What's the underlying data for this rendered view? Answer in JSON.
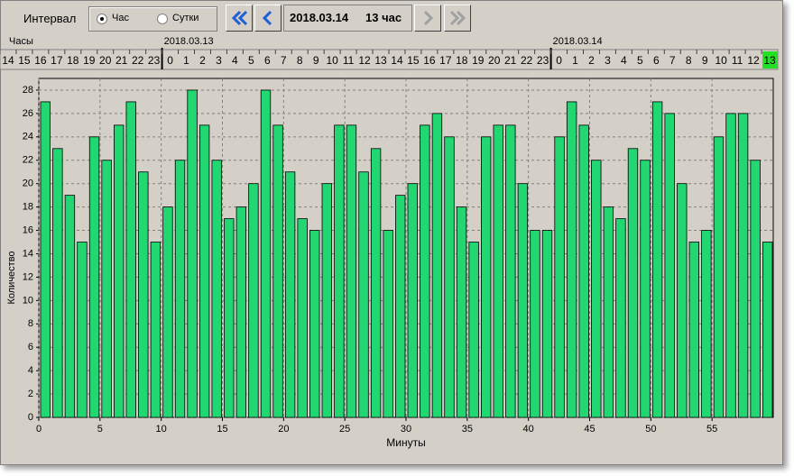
{
  "toolbar": {
    "interval_label": "Интервал",
    "options": [
      "Час",
      "Сутки"
    ],
    "selected": 0,
    "date": "2018.03.14",
    "hour": "13 час"
  },
  "timeline": {
    "label": "Часы",
    "selected_group": 2,
    "selected_hour": 13,
    "groups": [
      {
        "hours": [
          14,
          15,
          16,
          17,
          18,
          19,
          20,
          21,
          22,
          23
        ]
      },
      {
        "date": "2018.03.13",
        "hours": [
          0,
          1,
          2,
          3,
          4,
          5,
          6,
          7,
          8,
          9,
          10,
          11,
          12,
          13,
          14,
          15,
          16,
          17,
          18,
          19,
          20,
          21,
          22,
          23
        ]
      },
      {
        "date": "2018.03.14",
        "hours": [
          0,
          1,
          2,
          3,
          4,
          5,
          6,
          7,
          8,
          9,
          10,
          11,
          12,
          13
        ]
      }
    ]
  },
  "chart_data": {
    "type": "bar",
    "x_label": "Минуты",
    "y_label": "Количество",
    "color": "#22d672",
    "x": [
      0,
      1,
      2,
      3,
      4,
      5,
      6,
      7,
      8,
      9,
      10,
      11,
      12,
      13,
      14,
      15,
      16,
      17,
      18,
      19,
      20,
      21,
      22,
      23,
      24,
      25,
      26,
      27,
      28,
      29,
      30,
      31,
      32,
      33,
      34,
      35,
      36,
      37,
      38,
      39,
      40,
      41,
      42,
      43,
      44,
      45,
      46,
      47,
      48,
      49,
      50,
      51,
      52,
      53,
      54,
      55,
      56,
      57,
      58,
      59
    ],
    "values": [
      27,
      23,
      19,
      15,
      24,
      22,
      25,
      27,
      21,
      15,
      18,
      22,
      28,
      25,
      22,
      17,
      18,
      20,
      28,
      25,
      21,
      17,
      16,
      20,
      25,
      25,
      21,
      23,
      16,
      19,
      20,
      25,
      26,
      24,
      18,
      15,
      24,
      25,
      25,
      20,
      16,
      16,
      24,
      27,
      25,
      22,
      18,
      17,
      23,
      22,
      27,
      26,
      20,
      15,
      16,
      24,
      26,
      26,
      22,
      15
    ],
    "xlim": [
      0,
      60
    ],
    "xticks": [
      0,
      5,
      10,
      15,
      20,
      25,
      30,
      35,
      40,
      45,
      50,
      55
    ],
    "ylim": [
      0,
      29
    ],
    "yticks": [
      0,
      2,
      4,
      6,
      8,
      10,
      12,
      14,
      16,
      18,
      20,
      22,
      24,
      26,
      28
    ],
    "grid": true
  }
}
